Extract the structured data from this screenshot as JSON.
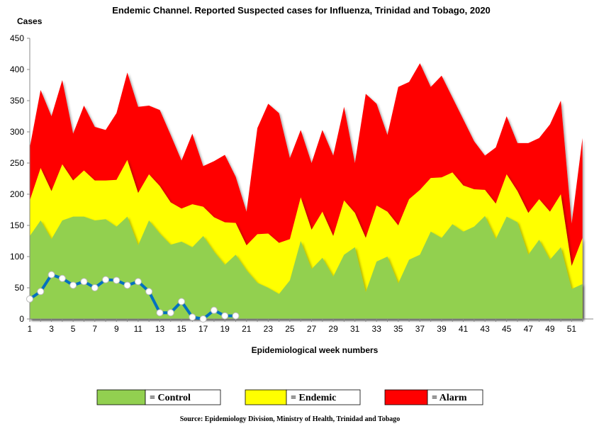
{
  "chart_data": {
    "type": "area",
    "title": "Endemic Channel. Reported Suspected cases for Influenza, Trinidad and Tobago, 2020",
    "ylabel": "Cases",
    "xlabel": "Epidemiological week numbers",
    "ylim": [
      0,
      450
    ],
    "yticks": [
      0,
      50,
      100,
      150,
      200,
      250,
      300,
      350,
      400,
      450
    ],
    "xticks": [
      1,
      3,
      5,
      7,
      9,
      11,
      13,
      15,
      17,
      19,
      21,
      23,
      25,
      27,
      29,
      31,
      33,
      35,
      37,
      39,
      41,
      43,
      45,
      47,
      49,
      51
    ],
    "weeks": [
      1,
      2,
      3,
      4,
      5,
      6,
      7,
      8,
      9,
      10,
      11,
      12,
      13,
      14,
      15,
      16,
      17,
      18,
      19,
      20,
      21,
      22,
      23,
      24,
      25,
      26,
      27,
      28,
      29,
      30,
      31,
      32,
      33,
      34,
      35,
      36,
      37,
      38,
      39,
      40,
      41,
      42,
      43,
      44,
      45,
      46,
      47,
      48,
      49,
      50,
      51,
      52
    ],
    "series": [
      {
        "name": "Control",
        "color": "#92d050",
        "values": [
          133,
          158,
          128,
          158,
          164,
          164,
          158,
          160,
          148,
          164,
          118,
          158,
          137,
          119,
          124,
          115,
          133,
          108,
          87,
          103,
          78,
          58,
          50,
          40,
          62,
          125,
          80,
          98,
          68,
          103,
          115,
          43,
          92,
          100,
          57,
          95,
          103,
          140,
          130,
          152,
          140,
          148,
          165,
          128,
          164,
          155,
          103,
          127,
          95,
          115,
          48,
          56
        ]
      },
      {
        "name": "Endemic",
        "color": "#ffff00",
        "values": [
          190,
          242,
          205,
          248,
          222,
          238,
          222,
          222,
          223,
          255,
          202,
          232,
          213,
          187,
          177,
          184,
          180,
          163,
          155,
          154,
          118,
          136,
          137,
          122,
          128,
          195,
          143,
          172,
          133,
          190,
          170,
          130,
          182,
          172,
          150,
          192,
          207,
          226,
          227,
          235,
          214,
          208,
          207,
          185,
          232,
          205,
          170,
          192,
          172,
          200,
          85,
          130
        ]
      },
      {
        "name": "Alarm",
        "color": "#ff0000",
        "values": [
          275,
          367,
          325,
          383,
          297,
          342,
          308,
          303,
          330,
          395,
          340,
          342,
          335,
          295,
          254,
          297,
          245,
          253,
          263,
          228,
          172,
          306,
          345,
          330,
          258,
          303,
          250,
          303,
          262,
          340,
          250,
          361,
          345,
          295,
          372,
          380,
          410,
          372,
          390,
          355,
          320,
          285,
          262,
          275,
          325,
          282,
          282,
          290,
          312,
          350,
          153,
          290
        ]
      }
    ],
    "reported": {
      "name": "Reported",
      "color": "#0070c0",
      "weeks": [
        1,
        2,
        3,
        4,
        5,
        6,
        7,
        8,
        9,
        10,
        11,
        12,
        13,
        14,
        15,
        16,
        17,
        18,
        19,
        20
      ],
      "values": [
        32,
        44,
        71,
        65,
        54,
        60,
        50,
        63,
        62,
        54,
        60,
        44,
        10,
        10,
        28,
        3,
        0,
        14,
        5,
        5
      ]
    },
    "legend": [
      {
        "label": "= Control",
        "color": "#92d050"
      },
      {
        "label": "= Endemic",
        "color": "#ffff00"
      },
      {
        "label": "= Alarm",
        "color": "#ff0000"
      }
    ],
    "source": "Source: Epidemiology Division, Ministry of Health, Trinidad and Tobago"
  }
}
